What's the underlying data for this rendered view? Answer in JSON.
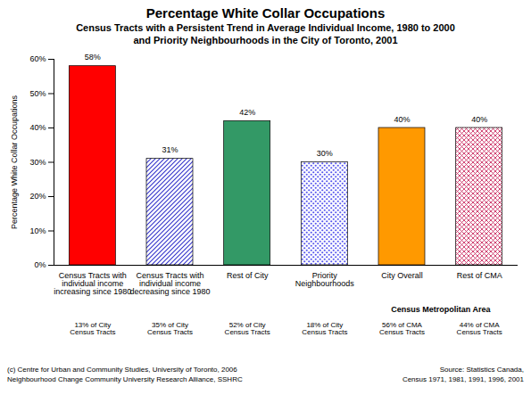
{
  "chart_data": {
    "type": "bar",
    "title": "Percentage White Collar Occupations",
    "subtitle": [
      "Census Tracts with a Persistent Trend in Average Individual Income, 1980 to 2000",
      "and Priority Neighbourhoods in the City of Toronto, 2001"
    ],
    "y_label": "Percentage White Collar Occupations",
    "categories": [
      "Census Tracts with individual income increasing since 1980",
      "Census Tracts with individual income decreasing since 1980",
      "Rest of City",
      "Priority Neighbourhoods",
      "City Overall",
      "Rest of CMA"
    ],
    "category_notes": [
      "13% of City Census Tracts",
      "35% of City Census Tracts",
      "52% of City Census Tracts",
      "18% of City Census Tracts",
      "56% of CMA Census Tracts",
      "44% of CMA Census Tracts"
    ],
    "group": {
      "label": "Census Metropolitan Area",
      "categories": [
        "City Overall",
        "Rest of CMA"
      ]
    },
    "values": [
      58,
      31,
      42,
      30,
      40,
      40
    ],
    "value_labels": [
      "58%",
      "31%",
      "42%",
      "30%",
      "40%",
      "40%"
    ],
    "data_labels": true,
    "colors": [
      "#ff0000",
      "#3333cc",
      "#339966",
      "#5555ee",
      "#ff9900",
      "#cc3366"
    ],
    "ylim": [
      0,
      60
    ],
    "yticks": [
      {
        "value": 0,
        "label": "0%"
      },
      {
        "value": 10,
        "label": "10%"
      },
      {
        "value": 20,
        "label": "20%"
      },
      {
        "value": 30,
        "label": "30%"
      },
      {
        "value": 40,
        "label": "40%"
      },
      {
        "value": 50,
        "label": "50%"
      },
      {
        "value": 60,
        "label": "60%"
      }
    ],
    "grid": false,
    "footer_left": [
      "(c) Centre for Urban and Community Studies, University of Toronto, 2006",
      "Neighbourhood Change Community University Research Alliance, SSHRC"
    ],
    "footer_right": [
      "Source: Statistics Canada,",
      "Census 1971, 1981, 1991, 1996, 2001"
    ]
  }
}
